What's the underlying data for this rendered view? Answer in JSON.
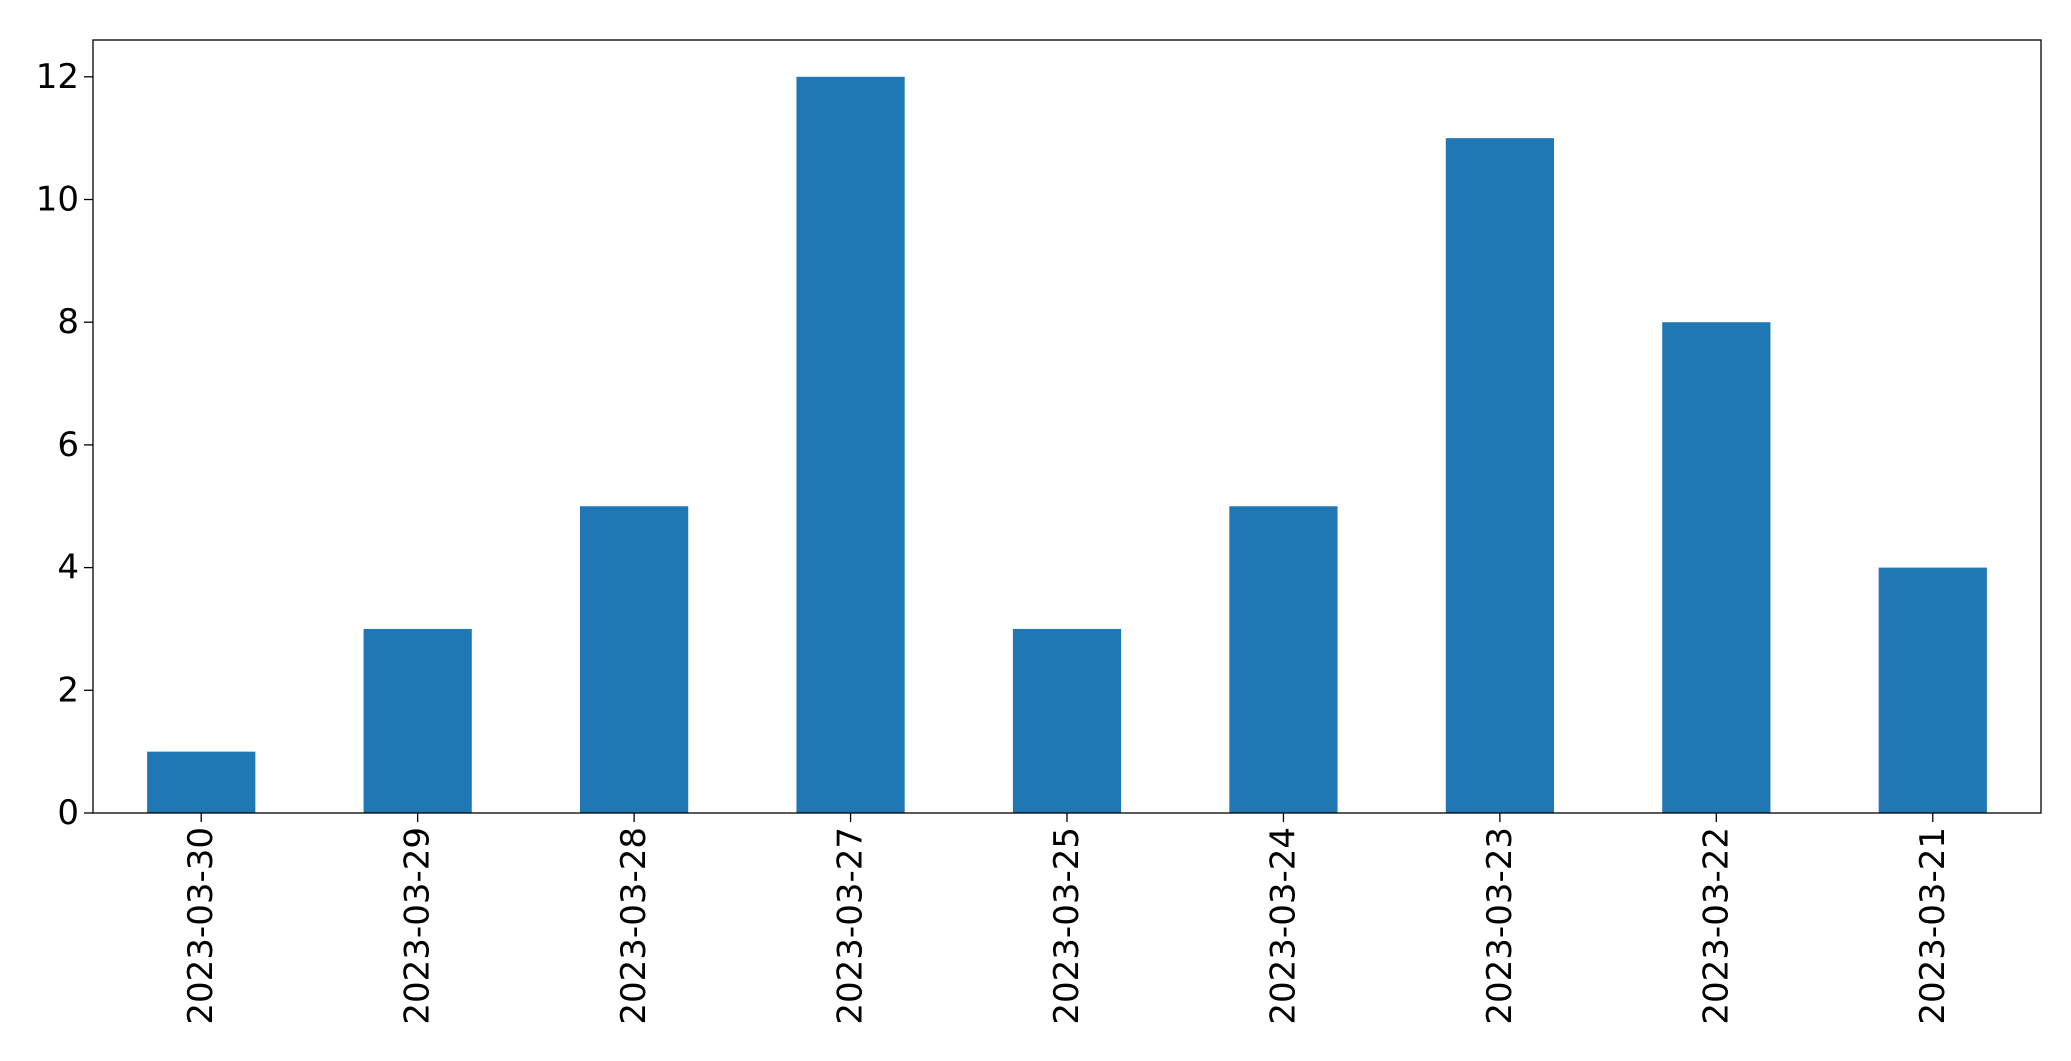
{
  "chart_data": {
    "type": "bar",
    "categories": [
      "2023-03-30",
      "2023-03-29",
      "2023-03-28",
      "2023-03-27",
      "2023-03-25",
      "2023-03-24",
      "2023-03-23",
      "2023-03-22",
      "2023-03-21"
    ],
    "values": [
      1,
      3,
      5,
      12,
      3,
      5,
      11,
      8,
      4
    ],
    "title": "",
    "xlabel": "",
    "ylabel": "",
    "ylim": [
      0,
      12.6
    ],
    "yticks": [
      0,
      2,
      4,
      6,
      8,
      10,
      12
    ],
    "xtick_rotation": "vertical",
    "grid": false,
    "legend": "none",
    "bar_color": "#1f77b4"
  }
}
